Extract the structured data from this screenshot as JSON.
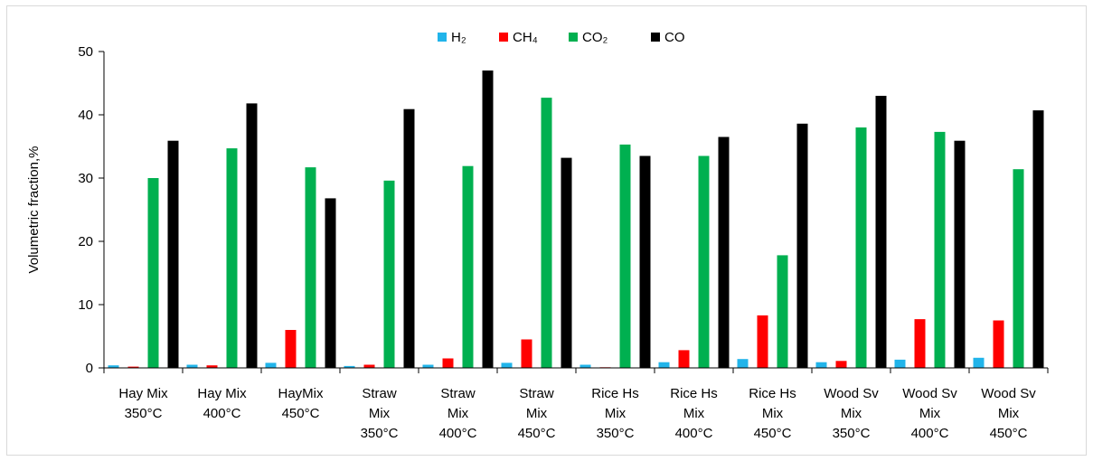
{
  "chart_data": {
    "type": "bar",
    "title": "",
    "xlabel": "",
    "ylabel": "Volumetric fraction,%",
    "ylim": [
      0,
      50
    ],
    "yticks": [
      0,
      10,
      20,
      30,
      40,
      50
    ],
    "grid": false,
    "legend_position": "top-center",
    "categories": [
      [
        "Hay Mix",
        "350°C"
      ],
      [
        "Hay Mix",
        "400°C"
      ],
      [
        "HayMix",
        "450°C"
      ],
      [
        "Straw",
        "Mix",
        "350°C"
      ],
      [
        "Straw",
        "Mix",
        "400°C"
      ],
      [
        "Straw",
        "Mix",
        "450°C"
      ],
      [
        "Rice Hs",
        "Mix",
        "350°C"
      ],
      [
        "Rice Hs",
        "Mix",
        "400°C"
      ],
      [
        "Rice Hs",
        "Mix",
        "450°C"
      ],
      [
        "Wood Sv",
        "Mix",
        "350°C"
      ],
      [
        "Wood Sv",
        "Mix",
        "400°C"
      ],
      [
        "Wood Sv",
        "Mix",
        "450°C"
      ]
    ],
    "series": [
      {
        "name": "H₂",
        "color": "#21b4ea",
        "values": [
          0.4,
          0.5,
          0.8,
          0.3,
          0.5,
          0.8,
          0.5,
          0.9,
          1.4,
          0.9,
          1.3,
          1.6
        ]
      },
      {
        "name": "CH₄",
        "color": "#ff0000",
        "values": [
          0.2,
          0.4,
          6.0,
          0.5,
          1.5,
          4.5,
          0.1,
          2.8,
          8.3,
          1.1,
          7.7,
          7.5
        ]
      },
      {
        "name": "CO₂",
        "color": "#00b050",
        "values": [
          30.0,
          34.7,
          31.7,
          29.6,
          31.9,
          42.7,
          35.3,
          33.5,
          17.8,
          38.0,
          37.3,
          31.4
        ]
      },
      {
        "name": "CO",
        "color": "#000000",
        "values": [
          35.9,
          41.8,
          26.8,
          40.9,
          47.0,
          33.2,
          33.5,
          36.5,
          38.6,
          43.0,
          35.9,
          40.7
        ]
      }
    ]
  }
}
